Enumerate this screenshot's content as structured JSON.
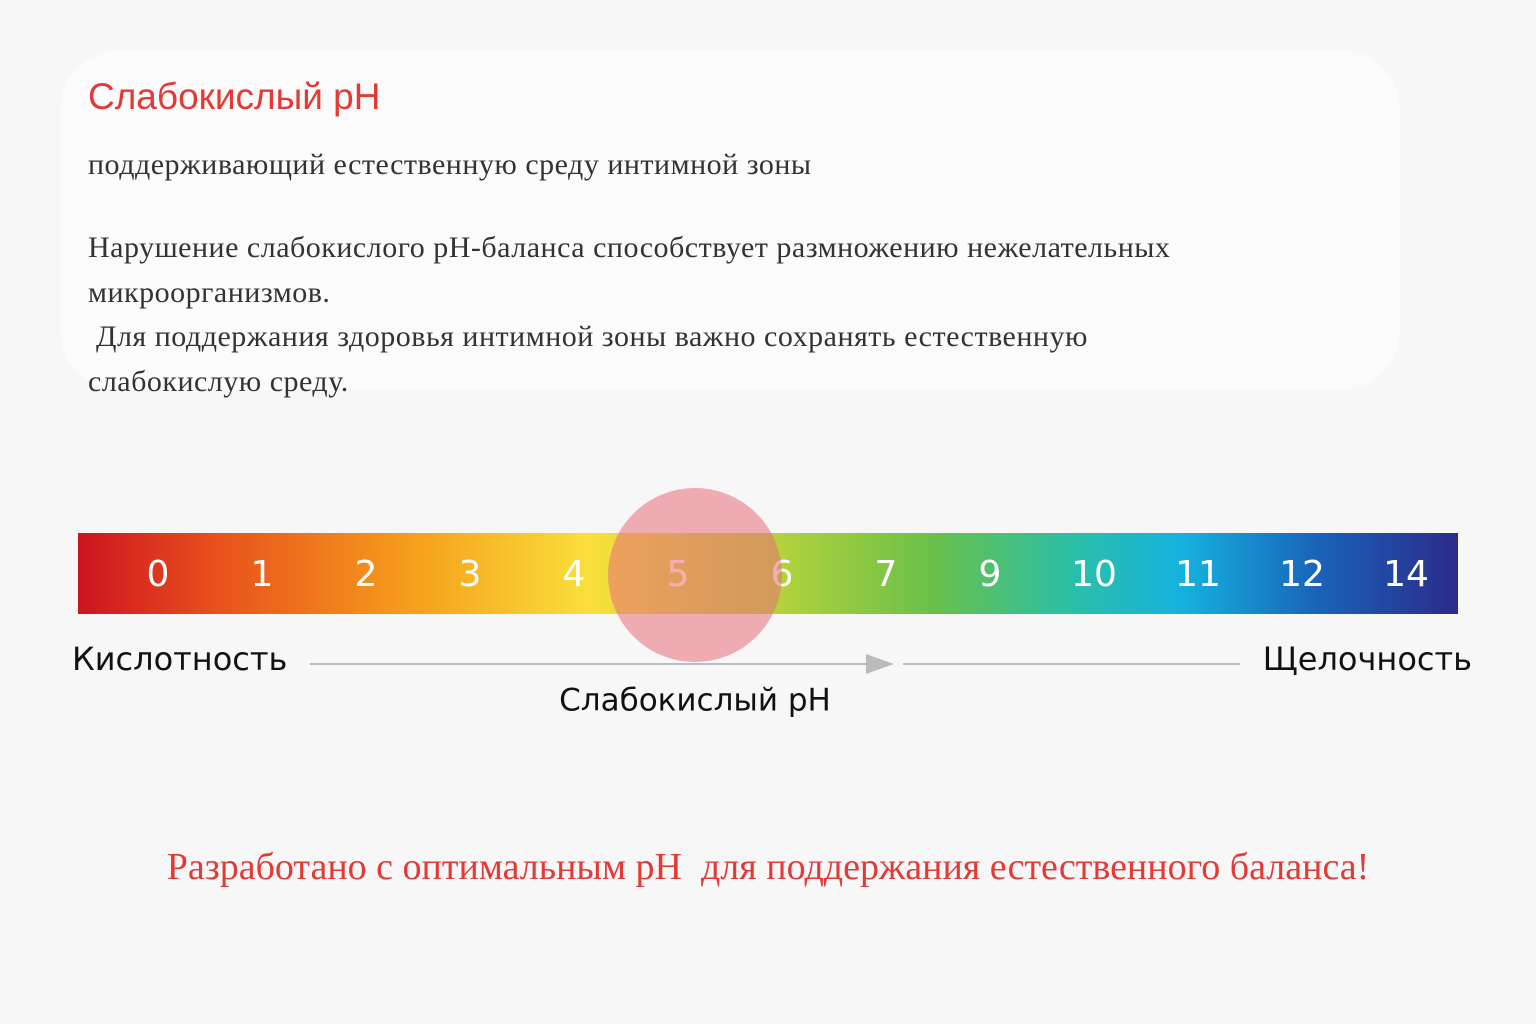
{
  "header": {
    "title": "Слабокислый pH",
    "subtitle": "поддерживающий естественную среду интимной зоны"
  },
  "body": {
    "lines": [
      "Нарушение слабокислого pH-баланса способствует размножению нежелательных",
      "микроорганизмов.",
      " Для поддержания здоровья интимной зоны важно сохранять естественную",
      "слабокислую среду."
    ]
  },
  "scale": {
    "labels": [
      0,
      1,
      2,
      3,
      4,
      5,
      6,
      7,
      9,
      10,
      11,
      12,
      14
    ],
    "left_label": "Кислотность",
    "right_label": "Щелочность",
    "highlight_label": "Слабокислый pH"
  },
  "footer": {
    "text": "Разработано с оптимальным pH  для поддержания естественного баланса!"
  }
}
